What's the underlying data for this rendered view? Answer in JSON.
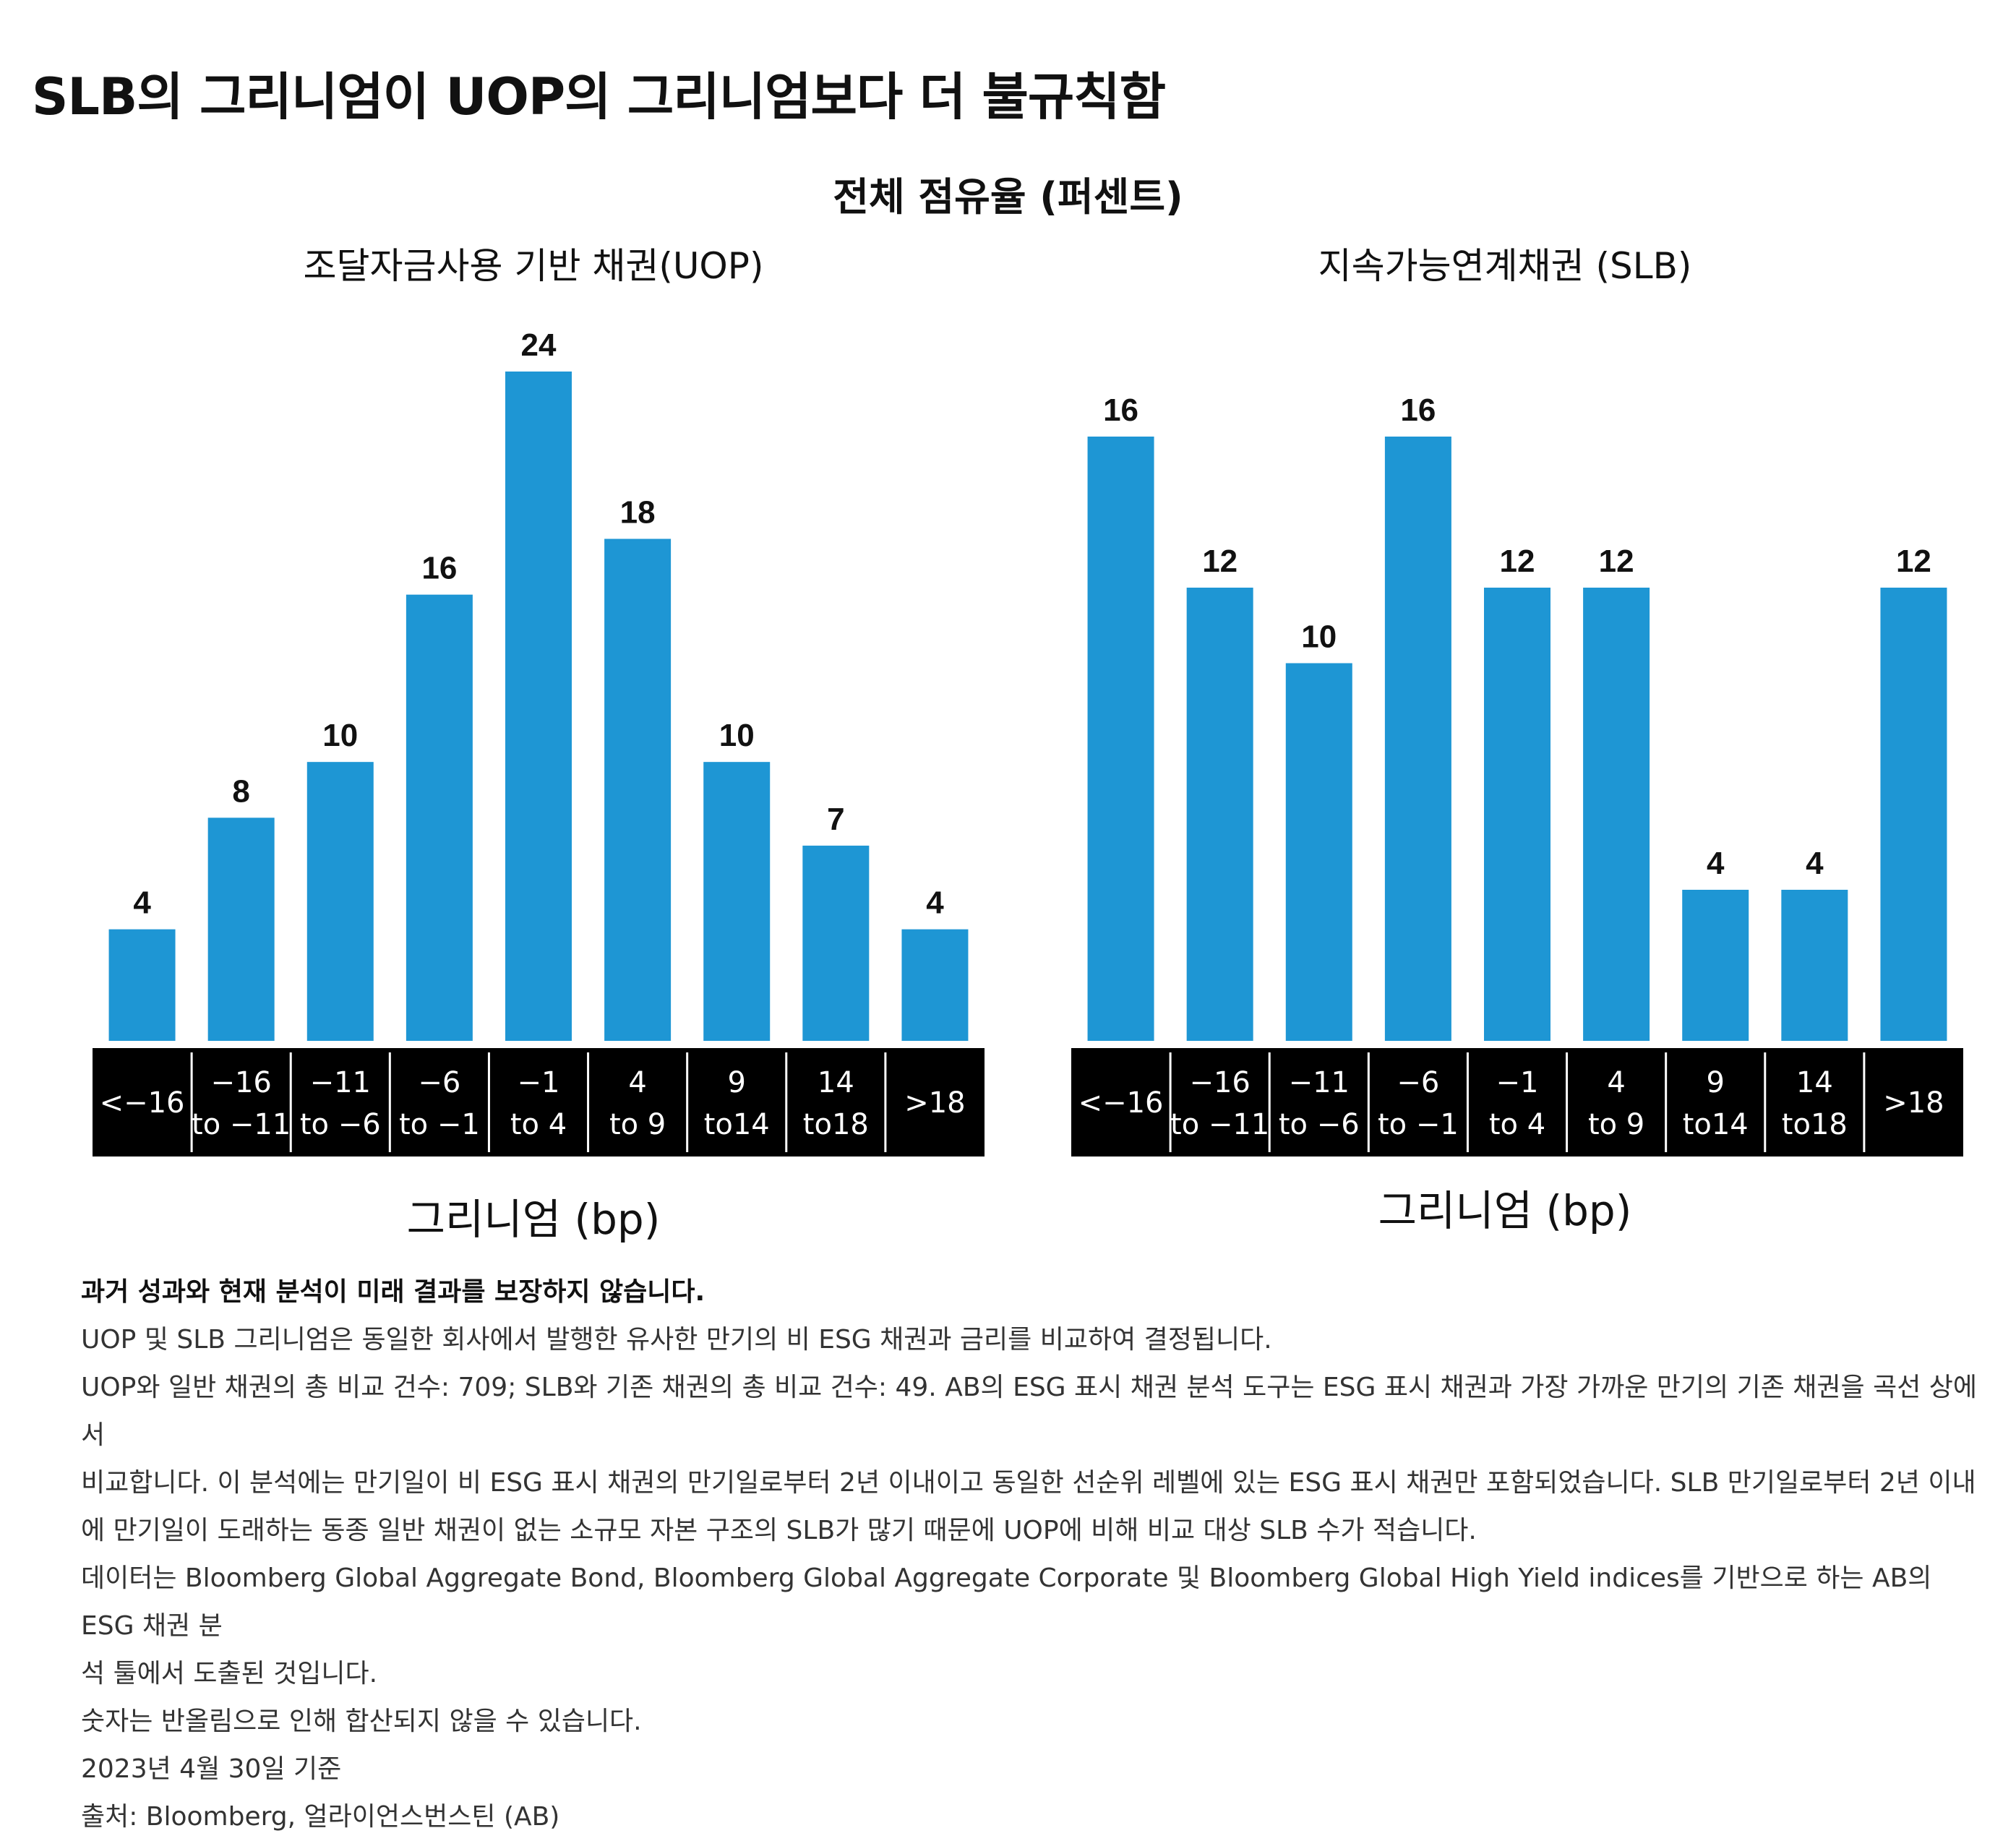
{
  "title": "SLB의 그리니엄이 UOP의 그리니엄보다 더 불규칙함",
  "subtitle": "전체 점유율 (퍼센트)",
  "chart_data": [
    {
      "type": "bar",
      "title": "조달자금사용 기반 채권(UOP)",
      "xlabel": "그리니엄 (bp)",
      "ylabel": "",
      "categories": [
        [
          "<−16"
        ],
        [
          "−16",
          "to −11"
        ],
        [
          "−11",
          "to −6"
        ],
        [
          "−6",
          "to −1"
        ],
        [
          "−1",
          "to 4"
        ],
        [
          "4",
          "to 9"
        ],
        [
          "9",
          "to14"
        ],
        [
          "14",
          "to18"
        ],
        [
          ">18"
        ]
      ],
      "values": [
        4,
        8,
        10,
        16,
        24,
        18,
        10,
        7,
        4
      ],
      "ylim": [
        0,
        24
      ],
      "grid": false,
      "bar_color": "#1e96d4"
    },
    {
      "type": "bar",
      "title": "지속가능연계채권 (SLB)",
      "xlabel": "그리니엄 (bp)",
      "ylabel": "",
      "categories": [
        [
          "<−16"
        ],
        [
          "−16",
          "to −11"
        ],
        [
          "−11",
          "to −6"
        ],
        [
          "−6",
          "to −1"
        ],
        [
          "−1",
          "to 4"
        ],
        [
          "4",
          "to 9"
        ],
        [
          "9",
          "to14"
        ],
        [
          "14",
          "to18"
        ],
        [
          ">18"
        ]
      ],
      "values": [
        16,
        12,
        10,
        16,
        12,
        12,
        4,
        4,
        12
      ],
      "ylim": [
        0,
        16
      ],
      "grid": false,
      "bar_color": "#1e96d4"
    }
  ],
  "notes": {
    "disclaimer": "과거 성과와 현재 분석이 미래 결과를 보장하지 않습니다.",
    "lines": [
      "UOP 및 SLB 그리니엄은 동일한 회사에서 발행한 유사한 만기의 비 ESG 채권과 금리를 비교하여 결정됩니다.",
      "UOP와 일반 채권의 총 비교 건수: 709; SLB와 기존 채권의 총 비교 건수: 49. AB의 ESG 표시 채권 분석 도구는 ESG 표시 채권과 가장 가까운 만기의 기존 채권을 곡선 상에서",
      "비교합니다. 이 분석에는 만기일이 비 ESG 표시 채권의 만기일로부터 2년 이내이고 동일한 선순위 레벨에 있는 ESG 표시 채권만 포함되었습니다. SLB 만기일로부터 2년 이내",
      "에 만기일이 도래하는 동종 일반 채권이 없는 소규모 자본 구조의 SLB가 많기 때문에 UOP에 비해 비교 대상 SLB 수가 적습니다.",
      "데이터는 Bloomberg Global Aggregate Bond, Bloomberg Global Aggregate Corporate 및 Bloomberg Global High Yield indices를 기반으로 하는 AB의 ESG 채권 분",
      "석 툴에서 도출된 것입니다.",
      "숫자는 반올림으로 인해 합산되지 않을 수 있습니다.",
      "2023년 4월 30일 기준",
      "출처: Bloomberg, 얼라이언스번스틴 (AB)"
    ]
  }
}
